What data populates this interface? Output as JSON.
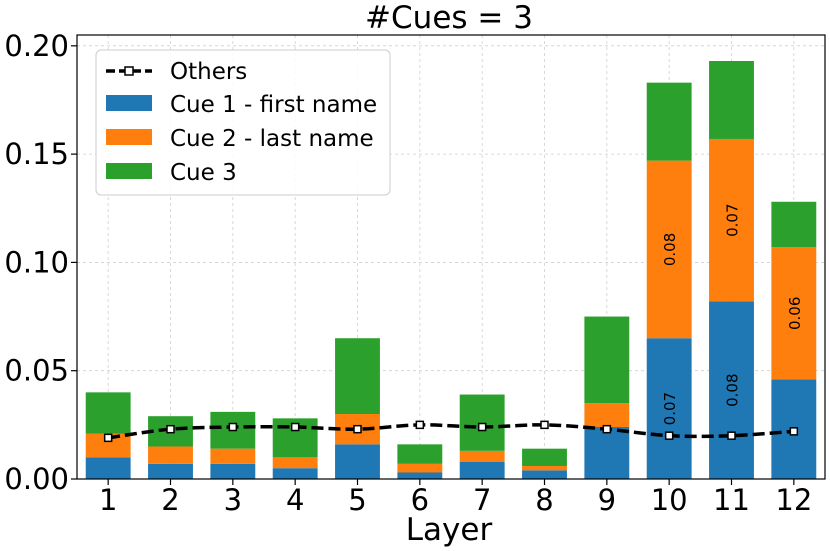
{
  "chart_data": {
    "type": "bar",
    "title": "#Cues = 3",
    "xlabel": "Layer",
    "ylabel": "",
    "categories": [
      "1",
      "2",
      "3",
      "4",
      "5",
      "6",
      "7",
      "8",
      "9",
      "10",
      "11",
      "12"
    ],
    "ylim": [
      0,
      0.205
    ],
    "yticks": [
      "0.00",
      "0.05",
      "0.10",
      "0.15",
      "0.20"
    ],
    "ytick_values": [
      0,
      0.05,
      0.1,
      0.15,
      0.2
    ],
    "grid": true,
    "legend_position": "top-left",
    "stacked": true,
    "series": [
      {
        "name": "Cue 1 - first name",
        "color": "#1f77b4",
        "values": [
          0.01,
          0.007,
          0.007,
          0.005,
          0.016,
          0.003,
          0.008,
          0.004,
          0.024,
          0.065,
          0.082,
          0.046
        ]
      },
      {
        "name": "Cue 2 - last name",
        "color": "#ff7f0e",
        "values": [
          0.011,
          0.008,
          0.007,
          0.005,
          0.014,
          0.004,
          0.005,
          0.002,
          0.011,
          0.082,
          0.075,
          0.061
        ]
      },
      {
        "name": "Cue 3",
        "color": "#2ca02c",
        "values": [
          0.019,
          0.014,
          0.017,
          0.018,
          0.035,
          0.009,
          0.026,
          0.008,
          0.04,
          0.036,
          0.036,
          0.021
        ]
      }
    ],
    "line_series": {
      "name": "Others",
      "color": "#000000",
      "values": [
        0.019,
        0.023,
        0.024,
        0.024,
        0.023,
        0.025,
        0.024,
        0.025,
        0.023,
        0.02,
        0.02,
        0.022
      ]
    },
    "annotations": [
      {
        "category": "10",
        "series": 0,
        "text": "0.07"
      },
      {
        "category": "10",
        "series": 1,
        "text": "0.08"
      },
      {
        "category": "11",
        "series": 0,
        "text": "0.08"
      },
      {
        "category": "11",
        "series": 1,
        "text": "0.07"
      },
      {
        "category": "12",
        "series": 1,
        "text": "0.06"
      }
    ]
  }
}
